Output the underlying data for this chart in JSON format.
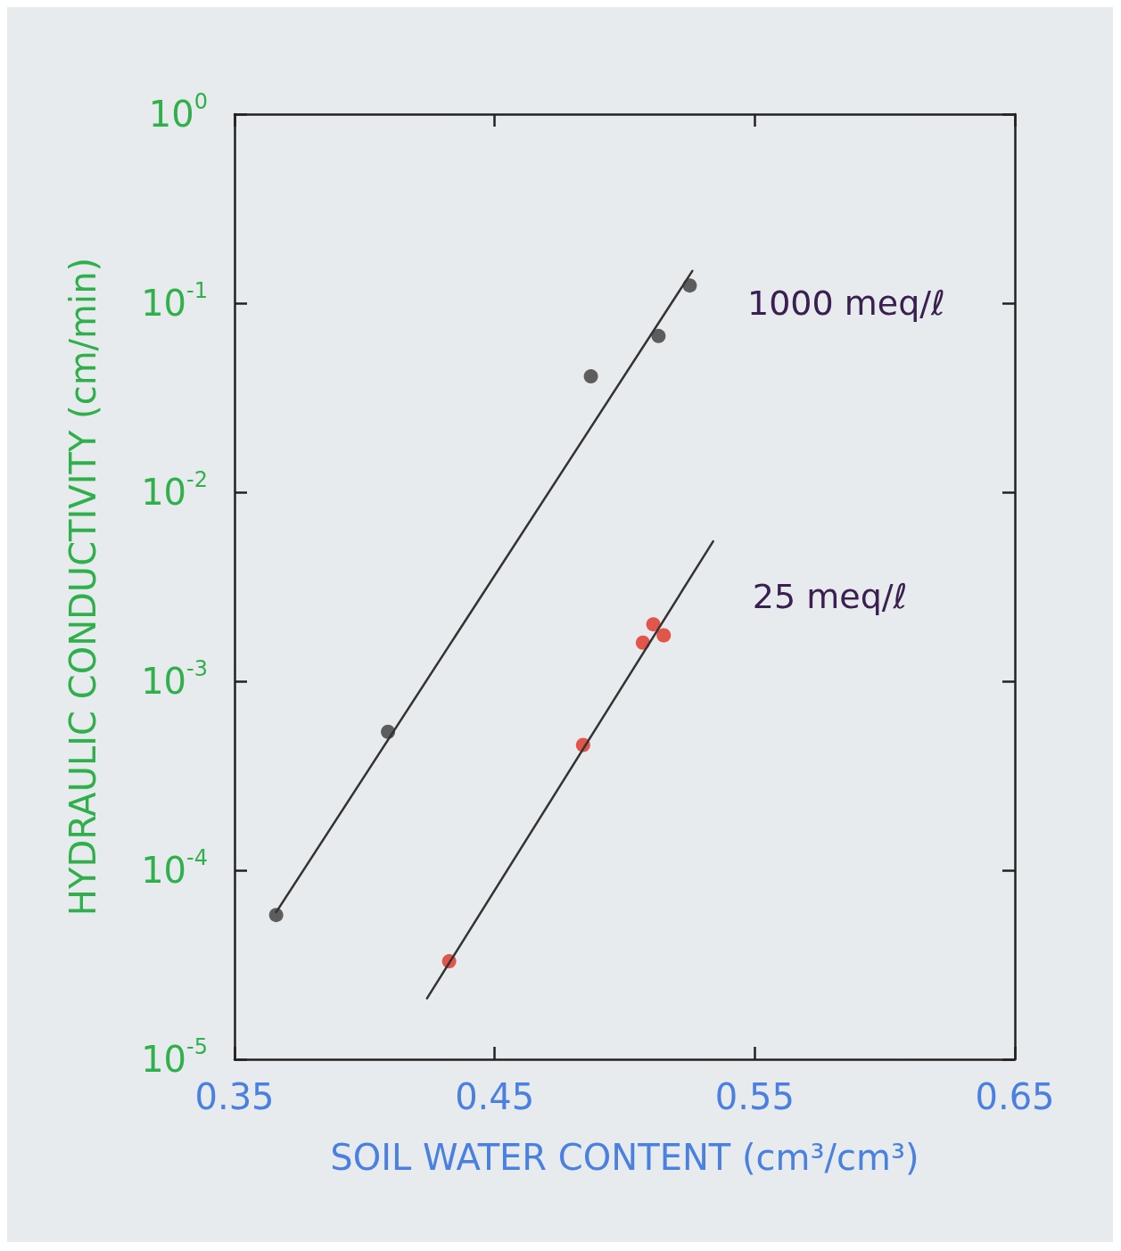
{
  "chart_data": {
    "type": "scatter",
    "xlabel": "SOIL WATER CONTENT (cm³/cm³)",
    "ylabel": "HYDRAULIC CONDUCTIVITY (cm/min)",
    "log": "y",
    "grid": false,
    "marker": "circle",
    "xlim": [
      0.35,
      0.65
    ],
    "xticks": [
      0.35,
      0.45,
      0.55,
      0.65
    ],
    "ylim": [
      1e-05,
      1
    ],
    "yticks": [
      {
        "value": 1e-05,
        "label": "10$^{-5}$"
      },
      {
        "value": 0.0001,
        "label": "10$^{-4}$"
      },
      {
        "value": 0.001,
        "label": "10$^{-3}$"
      },
      {
        "value": 0.01,
        "label": "10$^{-2}$"
      },
      {
        "value": 0.1,
        "label": "10$^{-1}$"
      },
      {
        "value": 1,
        "label": "10$^{0}$"
      }
    ],
    "series": [
      {
        "color": "#3a3a3a",
        "x": [
          0.366,
          0.409,
          0.487,
          0.513,
          0.525
        ],
        "values": [
          5.8e-05,
          0.00054,
          0.041,
          0.067,
          0.124
        ]
      },
      {
        "color": "#e03020",
        "x": [
          0.4325,
          0.484,
          0.507,
          0.511,
          0.515
        ],
        "values": [
          3.3e-05,
          0.00046,
          0.0016,
          0.002,
          0.00175
        ]
      },
      {
        "type": "line",
        "marker": "none",
        "color": "#333333",
        "x": [
          0.366,
          0.526
        ],
        "values": [
          6e-05,
          0.148
        ]
      },
      {
        "type": "line",
        "marker": "none",
        "color": "#333333",
        "x": [
          0.424,
          0.534
        ],
        "values": [
          2.1e-05,
          0.0055
        ]
      }
    ],
    "annotations": [
      {
        "text": "1000 meq/ℓ",
        "x": 0.518,
        "y": 0.1
      },
      {
        "text": "25 meq/ℓ",
        "x": 0.52,
        "y": 0.0028
      }
    ]
  }
}
